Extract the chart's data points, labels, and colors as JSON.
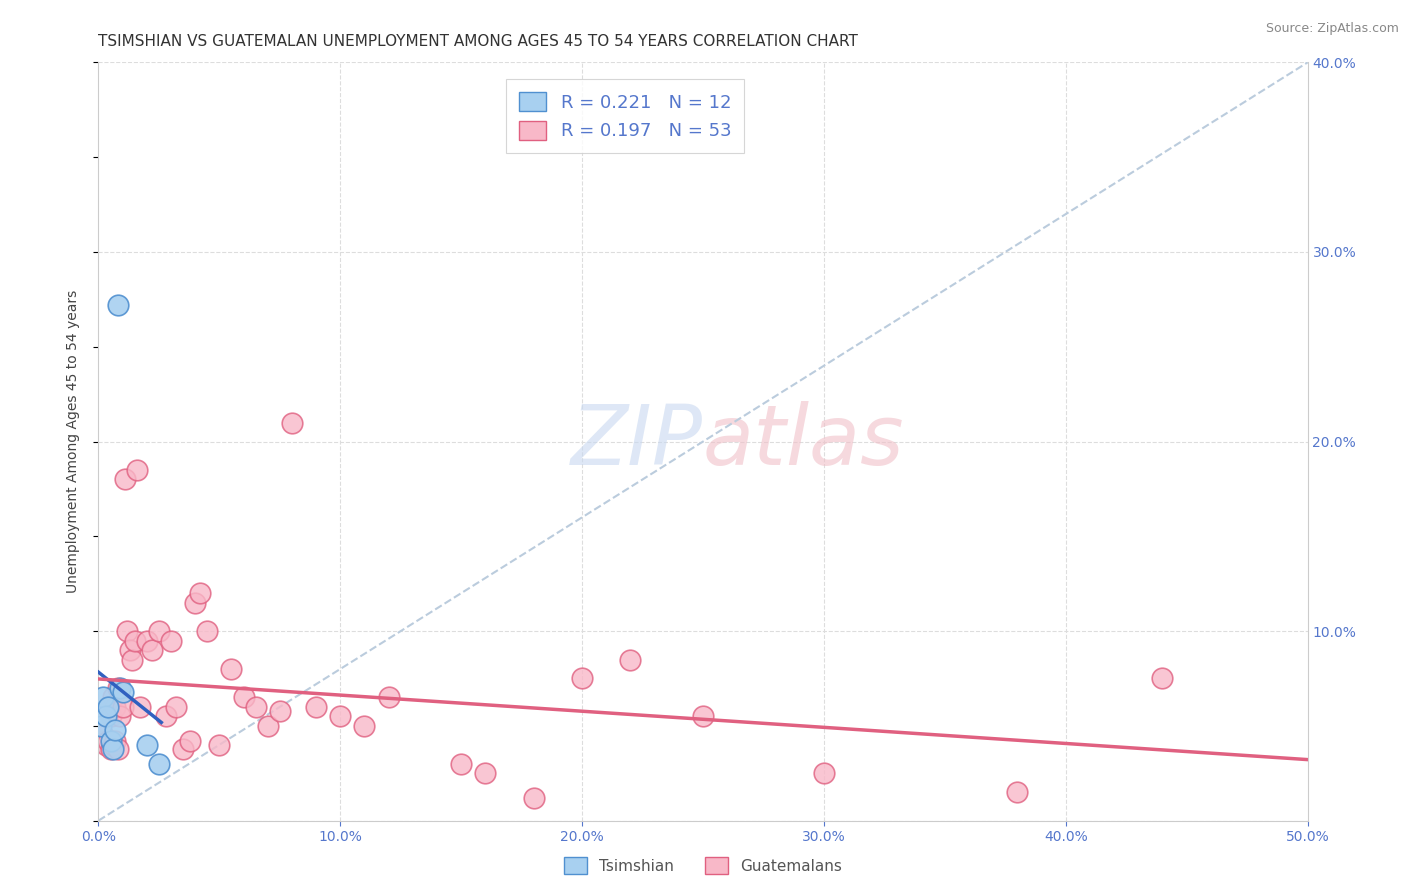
{
  "title": "TSIMSHIAN VS GUATEMALAN UNEMPLOYMENT AMONG AGES 45 TO 54 YEARS CORRELATION CHART",
  "source": "Source: ZipAtlas.com",
  "ylabel": "Unemployment Among Ages 45 to 54 years",
  "xlim": [
    0,
    0.5
  ],
  "ylim": [
    0,
    0.4
  ],
  "xticks": [
    0.0,
    0.1,
    0.2,
    0.3,
    0.4,
    0.5
  ],
  "yticks": [
    0.0,
    0.1,
    0.2,
    0.3,
    0.4
  ],
  "xticklabels": [
    "0.0%",
    "10.0%",
    "20.0%",
    "30.0%",
    "40.0%",
    "50.0%"
  ],
  "yticklabels_right": [
    "",
    "10.0%",
    "20.0%",
    "30.0%",
    "40.0%"
  ],
  "tsimshian_x": [
    0.001,
    0.002,
    0.003,
    0.004,
    0.005,
    0.006,
    0.007,
    0.008,
    0.009,
    0.01,
    0.02,
    0.025
  ],
  "tsimshian_y": [
    0.05,
    0.065,
    0.055,
    0.06,
    0.042,
    0.038,
    0.048,
    0.272,
    0.07,
    0.068,
    0.04,
    0.03
  ],
  "guatemalan_x": [
    0.001,
    0.002,
    0.003,
    0.004,
    0.004,
    0.005,
    0.005,
    0.006,
    0.006,
    0.007,
    0.007,
    0.008,
    0.008,
    0.009,
    0.01,
    0.011,
    0.012,
    0.013,
    0.014,
    0.015,
    0.016,
    0.017,
    0.02,
    0.022,
    0.025,
    0.028,
    0.03,
    0.032,
    0.035,
    0.038,
    0.04,
    0.042,
    0.045,
    0.05,
    0.055,
    0.06,
    0.065,
    0.07,
    0.075,
    0.08,
    0.09,
    0.1,
    0.11,
    0.12,
    0.15,
    0.16,
    0.18,
    0.2,
    0.22,
    0.25,
    0.3,
    0.38,
    0.44
  ],
  "guatemalan_y": [
    0.042,
    0.045,
    0.04,
    0.042,
    0.06,
    0.038,
    0.055,
    0.04,
    0.065,
    0.042,
    0.06,
    0.038,
    0.07,
    0.055,
    0.06,
    0.18,
    0.1,
    0.09,
    0.085,
    0.095,
    0.185,
    0.06,
    0.095,
    0.09,
    0.1,
    0.055,
    0.095,
    0.06,
    0.038,
    0.042,
    0.115,
    0.12,
    0.1,
    0.04,
    0.08,
    0.065,
    0.06,
    0.05,
    0.058,
    0.21,
    0.06,
    0.055,
    0.05,
    0.065,
    0.03,
    0.025,
    0.012,
    0.075,
    0.085,
    0.055,
    0.025,
    0.015,
    0.075
  ],
  "tsimshian_color": "#A8D0F0",
  "guatemalan_color": "#F8B8C8",
  "tsimshian_edge_color": "#5090D0",
  "guatemalan_edge_color": "#E06080",
  "tsimshian_line_color": "#3060C0",
  "guatemalan_line_color": "#E06080",
  "dashed_line_color": "#BBCCDD",
  "legend_label1": "Tsimshian",
  "legend_label2": "Guatemalans",
  "background_color": "#FFFFFF",
  "grid_color": "#DDDDDD",
  "axis_color": "#5577CC",
  "title_fontsize": 11,
  "label_fontsize": 10
}
